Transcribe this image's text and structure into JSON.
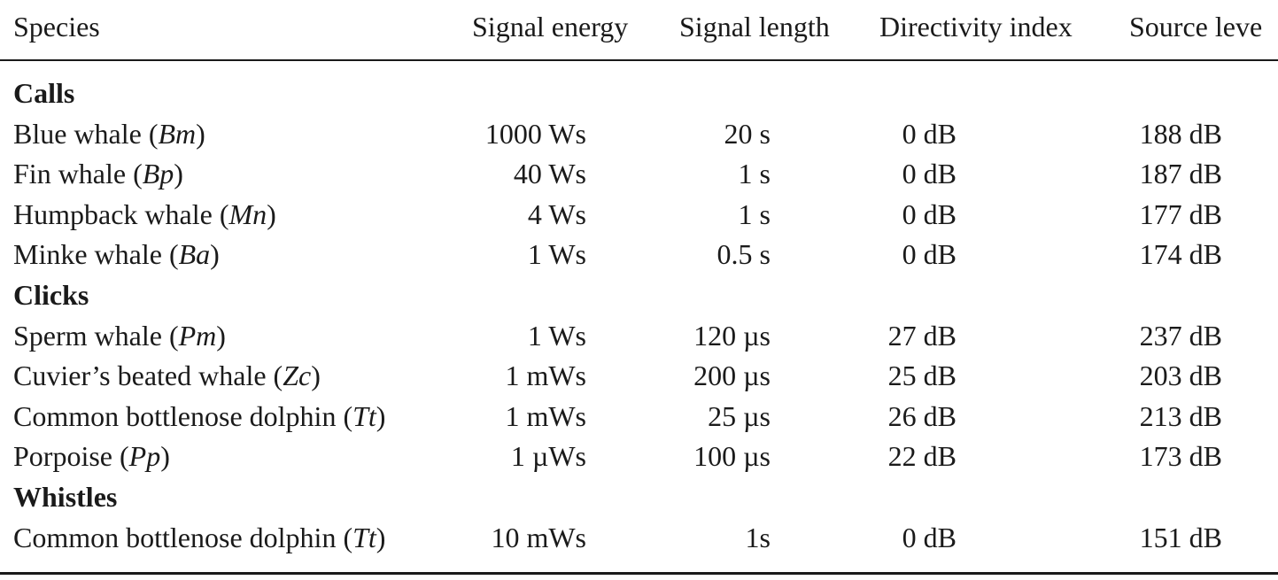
{
  "table": {
    "header": [
      "Species",
      "Signal energy",
      "Signal length",
      "Directivity index",
      "Source leve"
    ],
    "sections": [
      {
        "title": "Calls",
        "rows": [
          [
            "Blue whale (Bm)",
            "1000 Ws",
            "20 s",
            "0 dB",
            "188 dB"
          ],
          [
            "Fin whale (Bp)",
            "40 Ws",
            "1 s",
            "0 dB",
            "187 dB"
          ],
          [
            "Humpback whale (Mn)",
            "4 Ws",
            "1 s",
            "0 dB",
            "177 dB"
          ],
          [
            "Minke whale (Ba)",
            "1 Ws",
            "0.5 s",
            "0 dB",
            "174 dB"
          ]
        ]
      },
      {
        "title": "Clicks",
        "rows": [
          [
            "Sperm whale (Pm)",
            "1 Ws",
            "120 µs",
            "27 dB",
            "237 dB"
          ],
          [
            "Cuvier’s beated whale (Zc)",
            "1 mWs",
            "200 µs",
            "25 dB",
            "203 dB"
          ],
          [
            "Common bottlenose dolphin (Tt)",
            "1 mWs",
            "25 µs",
            "26 dB",
            "213 dB"
          ],
          [
            "Porpoise (Pp)",
            "1 µWs",
            "100 µs",
            "22 dB",
            "173 dB"
          ]
        ]
      },
      {
        "title": "Whistles",
        "rows": [
          [
            "Common bottlenose dolphin (Tt)",
            "10 mWs",
            "1s",
            "0 dB",
            "151 dB"
          ]
        ]
      }
    ]
  }
}
